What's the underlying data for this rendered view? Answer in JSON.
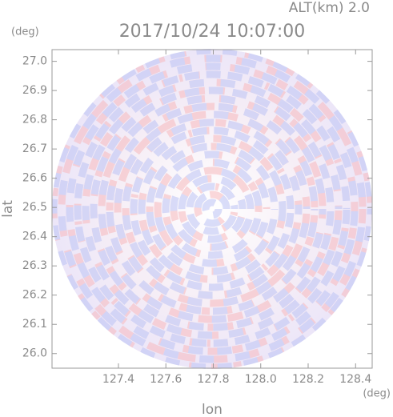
{
  "chart_data": {
    "type": "radar-ppi",
    "title": "2017/10/24 10:07:00",
    "subtitle": "ALT(km) 2.0",
    "x_label": "lon",
    "x_unit": "(deg)",
    "y_label": "lat",
    "y_unit": "(deg)",
    "xlim": [
      127.12,
      128.47
    ],
    "ylim": [
      25.95,
      27.04
    ],
    "xticks": [
      127.4,
      127.6,
      127.8,
      {
        "value": 128,
        "label": "128.0"
      },
      128.2,
      128.4
    ],
    "yticks": [
      {
        "value": 26,
        "label": "26.0"
      },
      26.1,
      26.2,
      26.3,
      26.4,
      26.5,
      26.6,
      26.7,
      26.8,
      26.9,
      {
        "value": 27,
        "label": "27.0"
      }
    ]
  }
}
